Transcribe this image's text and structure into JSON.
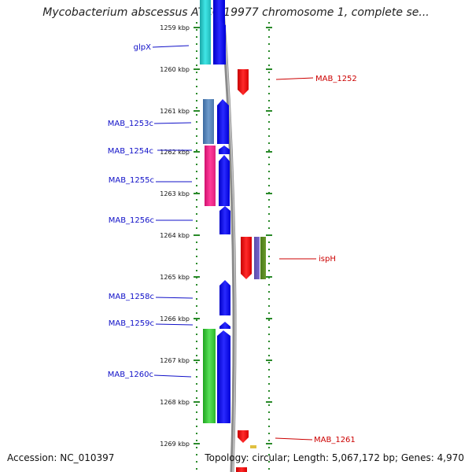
{
  "title": "Mycobacterium abscessus ATCC 19977 chromosome 1, complete se...",
  "accession": "Accession: NC_010397",
  "topology": "Topology: circular; Length: 5,067,172 bp; Genes: 4,970",
  "scale": {
    "unit": "kbp",
    "ticks": [
      "1259 kbp",
      "1260 kbp",
      "1261 kbp",
      "1262 kbp",
      "1263 kbp",
      "1264 kbp",
      "1265 kbp",
      "1266 kbp",
      "1267 kbp",
      "1268 kbp",
      "1269 kbp"
    ]
  },
  "colors": {
    "backbone": "#888888",
    "ruler_dots": "#2a8a2a",
    "left_label": "#1010c8",
    "right_label": "#cc0000"
  },
  "left_genes": [
    "glpX",
    "MAB_1253c",
    "MAB_1254c",
    "MAB_1255c",
    "MAB_1256c",
    "MAB_1258c",
    "MAB_1259c",
    "MAB_1260c"
  ],
  "right_genes": [
    "MAB_1252",
    "ispH",
    "MAB_1261"
  ]
}
